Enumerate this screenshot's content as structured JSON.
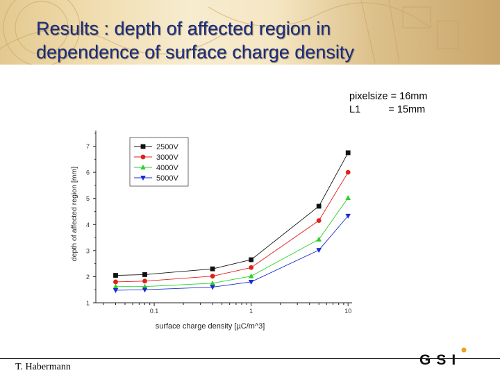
{
  "slide": {
    "title_line1": "Results : depth of affected region in",
    "title_line2": "dependence of surface charge density",
    "note_line1": "pixelsize = 16mm",
    "note_line2": "L1          = 15mm",
    "author": "T. Habermann",
    "logo_text": "GSI"
  },
  "chart_data": {
    "type": "line",
    "xlabel": "surface charge density [µC/m^3]",
    "ylabel": "depth of affected region [mm]",
    "xscale": "log",
    "xlim": [
      0.025,
      11
    ],
    "ylim": [
      1,
      7.6
    ],
    "yticks": [
      1,
      2,
      3,
      4,
      5,
      6,
      7
    ],
    "xticks": [
      0.1,
      1,
      10
    ],
    "xtick_labels": [
      "0.1",
      "1",
      "10"
    ],
    "grid": false,
    "legend": "top-left",
    "x": [
      0.04,
      0.08,
      0.4,
      1,
      5,
      10
    ],
    "series": [
      {
        "name": "2500V",
        "values": [
          2.05,
          2.08,
          2.3,
          2.65,
          4.7,
          6.75
        ],
        "color": "#111111",
        "marker": "square"
      },
      {
        "name": "3000V",
        "values": [
          1.8,
          1.83,
          2.02,
          2.35,
          4.15,
          6.0
        ],
        "color": "#e0201a",
        "marker": "circle"
      },
      {
        "name": "4000V",
        "values": [
          1.62,
          1.62,
          1.75,
          2.02,
          3.43,
          5.02
        ],
        "color": "#2bd12b",
        "marker": "triangle-up"
      },
      {
        "name": "5000V",
        "values": [
          1.48,
          1.5,
          1.6,
          1.8,
          3.02,
          4.33
        ],
        "color": "#1a2bd0",
        "marker": "triangle-down"
      }
    ]
  }
}
